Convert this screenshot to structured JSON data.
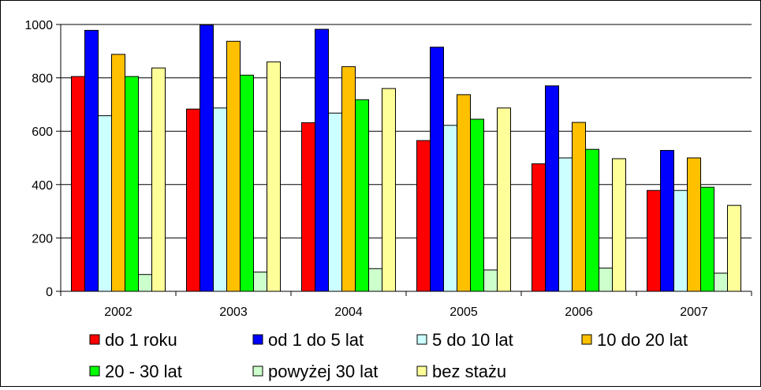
{
  "chart_data": {
    "type": "bar",
    "title": "",
    "xlabel": "",
    "ylabel": "",
    "categories": [
      "2002",
      "2003",
      "2004",
      "2005",
      "2006",
      "2007"
    ],
    "y_ticks": [
      "0",
      "200",
      "400",
      "600",
      "800",
      "1000"
    ],
    "ylim": [
      0,
      1000
    ],
    "grid": true,
    "legend_position": "bottom",
    "series": [
      {
        "name": "do 1 roku",
        "color": "#ff0000",
        "values": [
          805,
          683,
          632,
          565,
          478,
          378
        ]
      },
      {
        "name": "od 1 do 5 lat",
        "color": "#0000ff",
        "values": [
          978,
          998,
          982,
          915,
          770,
          528
        ]
      },
      {
        "name": "5 do 10 lat",
        "color": "#ccffff",
        "values": [
          658,
          687,
          668,
          622,
          500,
          378
        ]
      },
      {
        "name": "10 do 20 lat",
        "color": "#ffc000",
        "values": [
          888,
          937,
          842,
          737,
          633,
          500
        ]
      },
      {
        "name": "20 - 30 lat",
        "color": "#00ff00",
        "values": [
          805,
          810,
          718,
          645,
          532,
          390
        ]
      },
      {
        "name": "powyżej 30 lat",
        "color": "#ccffcc",
        "values": [
          63,
          72,
          85,
          80,
          87,
          68
        ]
      },
      {
        "name": "bez stażu",
        "color": "#ffff99",
        "values": [
          837,
          860,
          760,
          687,
          497,
          322
        ]
      }
    ]
  }
}
